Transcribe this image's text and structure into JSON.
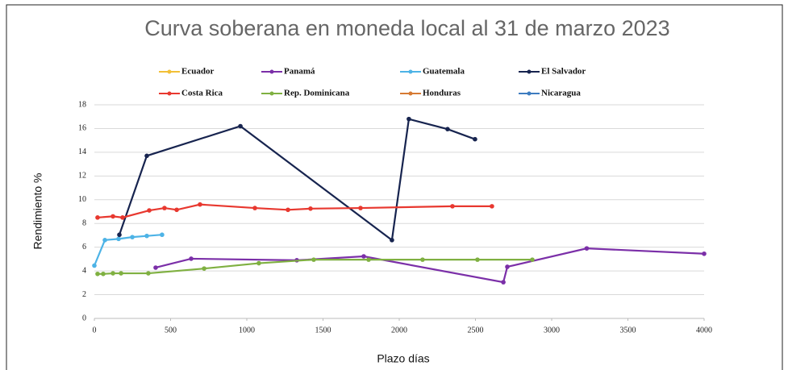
{
  "chart_data": {
    "type": "line",
    "title": "Curva soberana en moneda local al 31 de marzo 2023",
    "x_label": "Plazo días",
    "y_label": "Rendimiento %",
    "xlim": [
      0,
      4000
    ],
    "xticks": [
      0,
      500,
      1000,
      1500,
      2000,
      2500,
      3000,
      3500,
      4000
    ],
    "ylim": [
      0,
      18
    ],
    "yticks": [
      0,
      2,
      4,
      6,
      8,
      10,
      12,
      14,
      16,
      18
    ],
    "legend": "top",
    "series": [
      {
        "name": "Ecuador",
        "color": "#f2c037",
        "x": [],
        "values": []
      },
      {
        "name": "Panamá",
        "color": "#7b2fa8",
        "x": [
          402,
          635,
          1328,
          1767,
          2683,
          2709,
          3230,
          4000
        ],
        "values": [
          4.28,
          5.03,
          4.9,
          5.23,
          3.05,
          4.35,
          5.9,
          5.45
        ]
      },
      {
        "name": "Guatemala",
        "color": "#4db3e6",
        "x": [
          0,
          69,
          159,
          249,
          344,
          444
        ],
        "values": [
          4.45,
          6.6,
          6.7,
          6.85,
          6.95,
          7.05
        ]
      },
      {
        "name": "El Salvador",
        "color": "#17244f",
        "x": [
          164,
          344,
          958,
          1952,
          2063,
          2317,
          2497
        ],
        "values": [
          7.05,
          13.7,
          16.2,
          6.6,
          16.8,
          15.95,
          15.1
        ]
      },
      {
        "name": "Costa Rica",
        "color": "#e8382f",
        "x": [
          21,
          122,
          185,
          360,
          460,
          540,
          693,
          1053,
          1270,
          1418,
          1746,
          2349,
          2608
        ],
        "values": [
          8.5,
          8.6,
          8.5,
          9.1,
          9.3,
          9.15,
          9.6,
          9.3,
          9.15,
          9.25,
          9.3,
          9.45,
          9.45
        ]
      },
      {
        "name": "Rep. Dominicana",
        "color": "#7fb041",
        "x": [
          21,
          58,
          122,
          175,
          354,
          720,
          1079,
          1439,
          1799,
          2153,
          2513,
          2873
        ],
        "values": [
          3.75,
          3.75,
          3.8,
          3.8,
          3.8,
          4.2,
          4.65,
          4.95,
          4.95,
          4.95,
          4.95,
          4.95
        ]
      },
      {
        "name": "Honduras",
        "color": "#d67a33",
        "x": [],
        "values": []
      },
      {
        "name": "Nicaragua",
        "color": "#3d7cc0",
        "x": [],
        "values": []
      }
    ]
  }
}
